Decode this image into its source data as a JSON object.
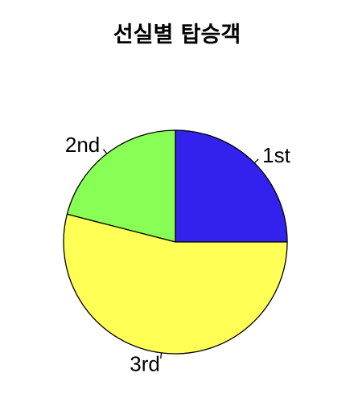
{
  "chart_data": {
    "type": "pie",
    "title": "선실별 탑승객",
    "categories": [
      "1st",
      "2nd",
      "3rd"
    ],
    "values": [
      25,
      21,
      54
    ],
    "colors": [
      "#3322ee",
      "#88ff55",
      "#ffff55"
    ],
    "start": "counterclockwise from 3 o'clock",
    "legend": "none"
  }
}
